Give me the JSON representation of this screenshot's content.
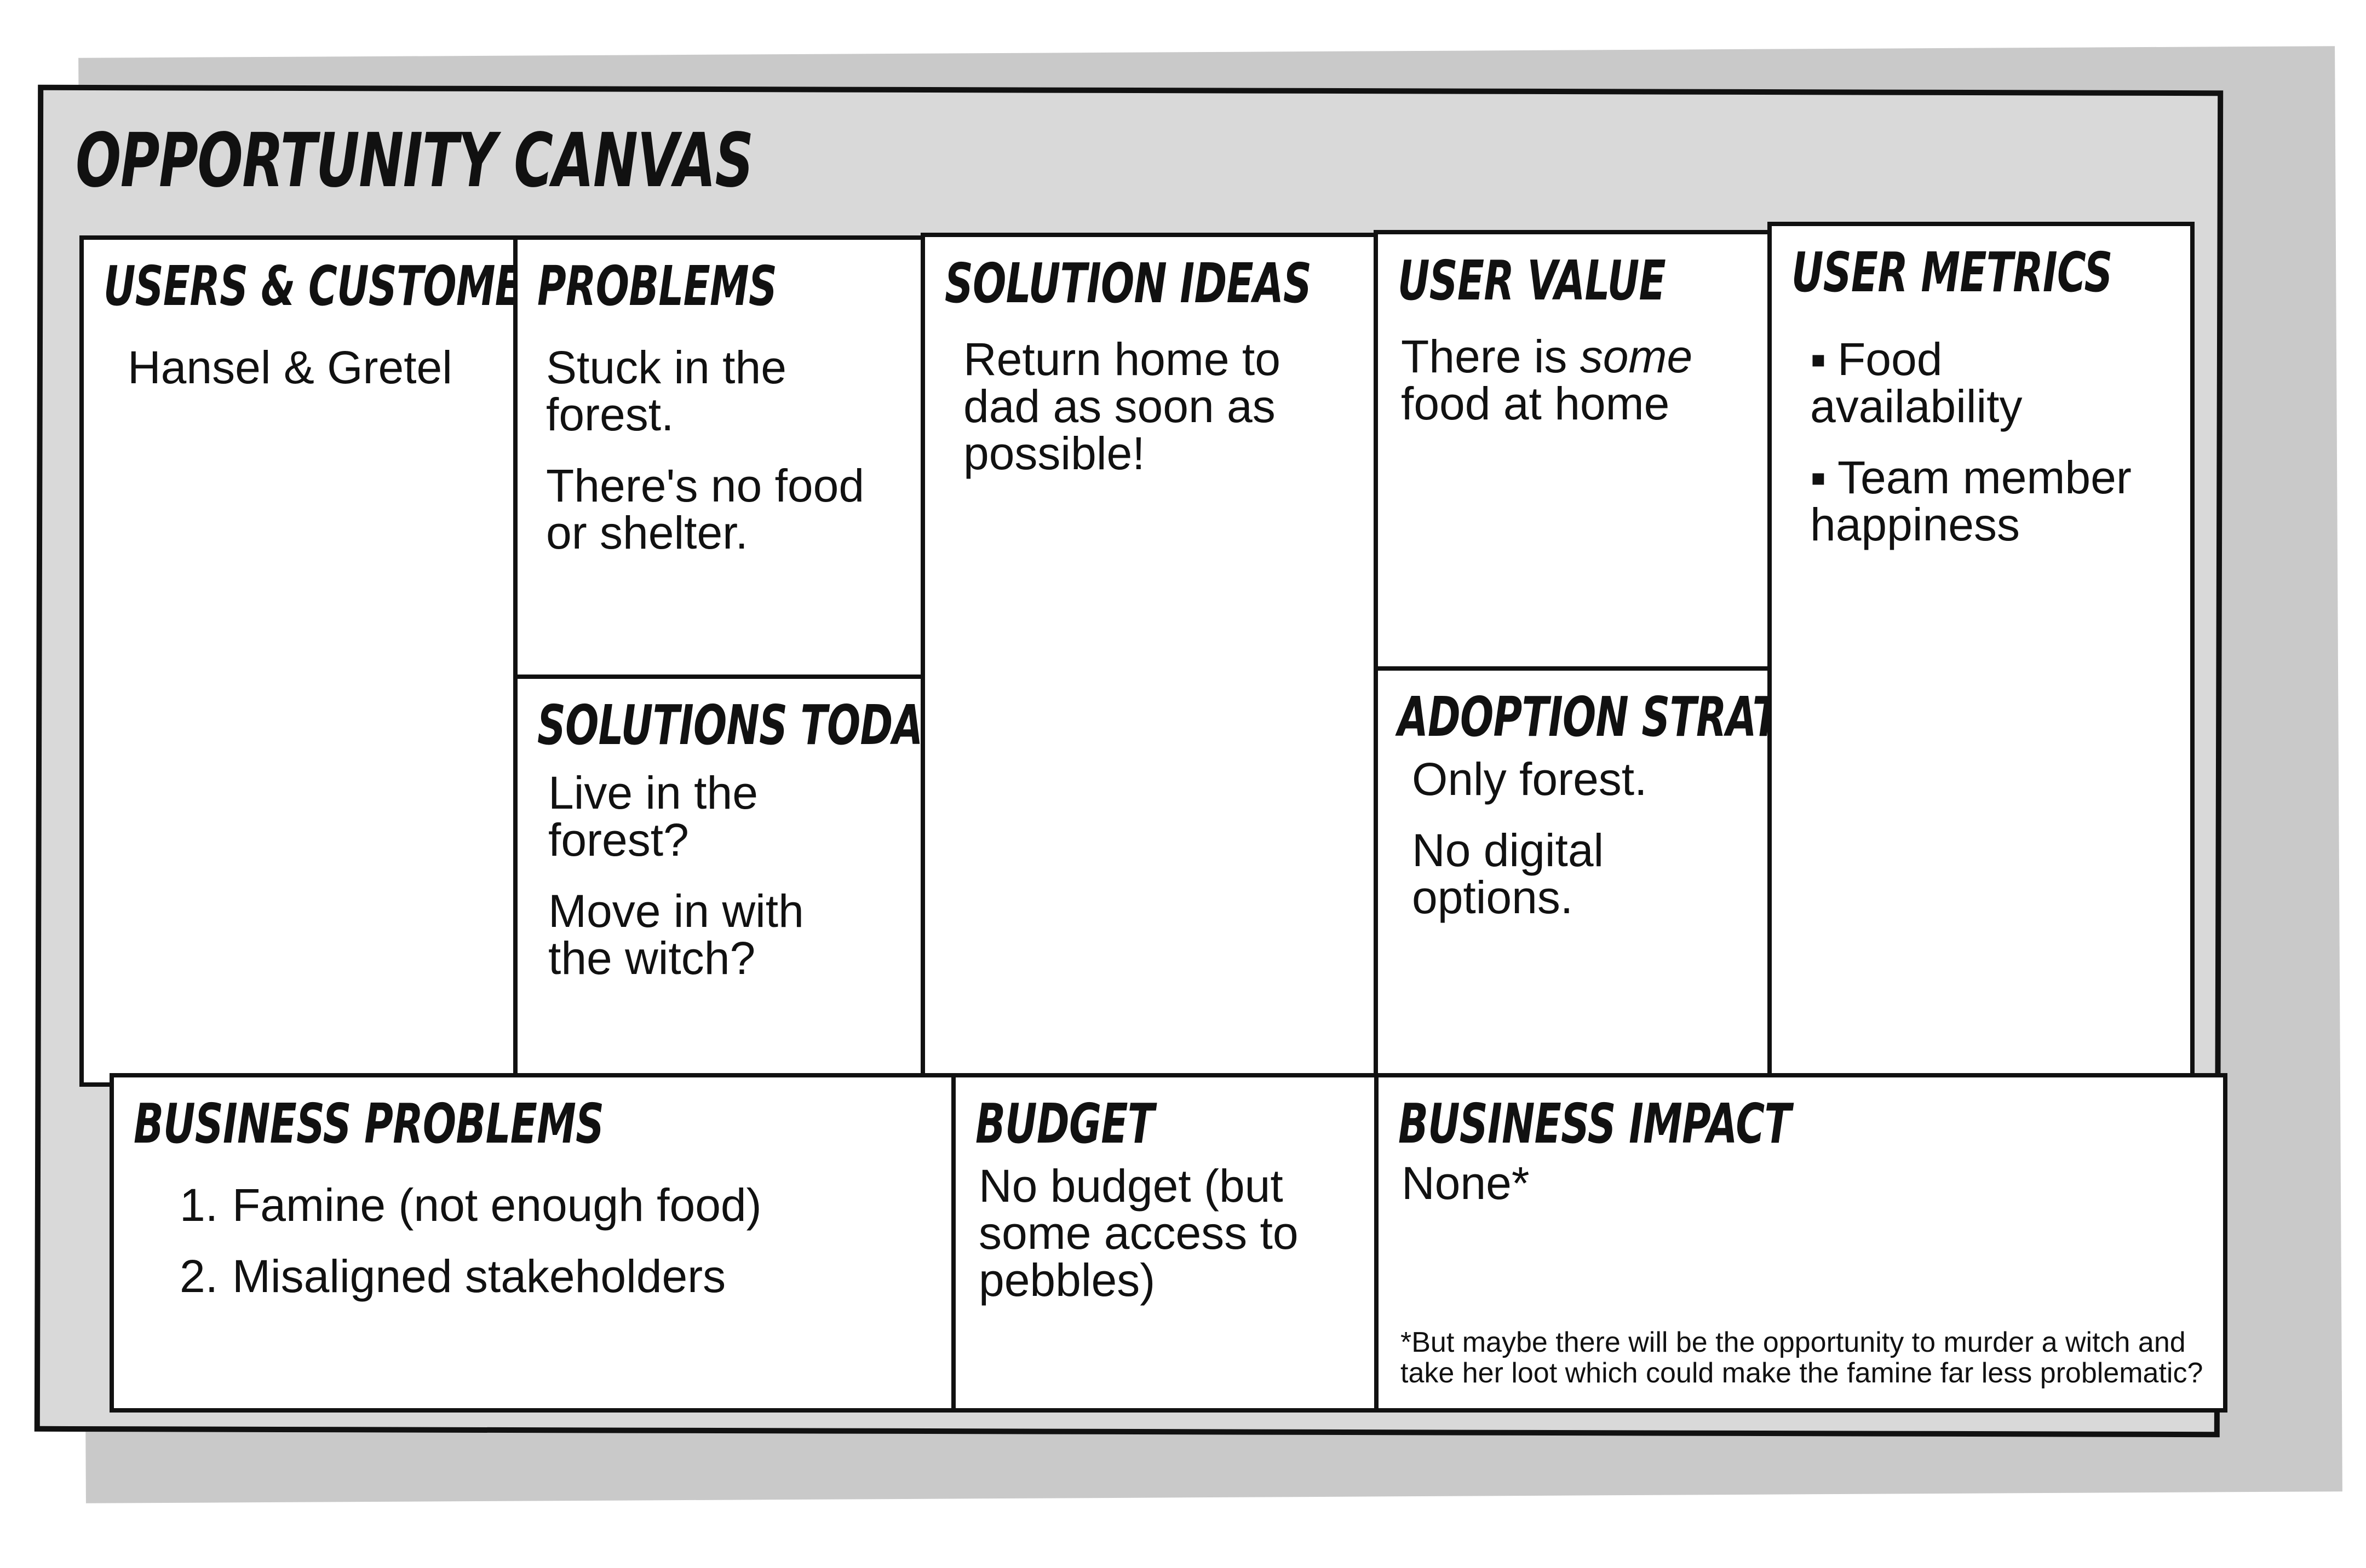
{
  "title": "OPPORTUNITY CANVAS",
  "sections": {
    "users_customers": {
      "heading": "USERS & CUSTOMERS",
      "items": [
        "Hansel & Gretel"
      ]
    },
    "problems": {
      "heading": "PROBLEMS",
      "items": [
        "Stuck in the forest.",
        "There's no food or shelter."
      ]
    },
    "solutions_today": {
      "heading": "SOLUTIONS TODAY",
      "items": [
        "Live in the forest?",
        "Move in with the witch?"
      ]
    },
    "solution_ideas": {
      "heading": "SOLUTION IDEAS",
      "items": [
        "Return home to dad as soon as possible!"
      ]
    },
    "user_value": {
      "heading": "USER VALUE",
      "text_before": "There is ",
      "text_emphasis": "some",
      "text_after": " food at home"
    },
    "adoption_strategy": {
      "heading": "ADOPTION STRATEGY",
      "items": [
        "Only forest.",
        "No digital options."
      ]
    },
    "user_metrics": {
      "heading": "USER METRICS",
      "bullet": "▪",
      "items": [
        "Food availability",
        "Team member happiness"
      ]
    },
    "business_problems": {
      "heading": "BUSINESS PROBLEMS",
      "numbers": [
        "1.",
        "2."
      ],
      "items": [
        "Famine (not enough food)",
        "Misaligned stakeholders"
      ]
    },
    "budget": {
      "heading": "BUDGET",
      "items": [
        "No budget (but some access to pebbles)"
      ]
    },
    "business_impact": {
      "heading": "BUSINESS IMPACT",
      "items": [
        "None*"
      ],
      "footnote": "*But maybe there will be the opportunity to murder a witch and take her loot which could make the famine far less problematic?"
    }
  }
}
